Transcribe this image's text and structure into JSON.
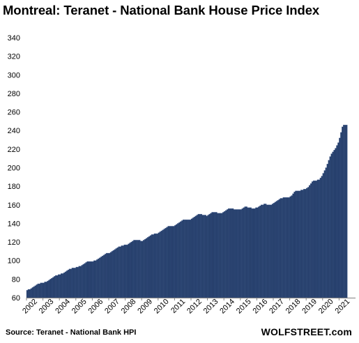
{
  "chart_data": {
    "type": "bar",
    "title": "Montreal: Teranet - National Bank House Price Index",
    "source": "Source: Teranet - National Bank HPI",
    "brand": "WOLFSTREET.com",
    "xlabel": "",
    "ylabel": "",
    "ylim": [
      60,
      340
    ],
    "yticks": [
      60,
      80,
      100,
      120,
      140,
      160,
      180,
      200,
      220,
      240,
      260,
      280,
      300,
      320,
      340
    ],
    "grid": false,
    "legend": "none",
    "bar_color": "#1f3864",
    "categories": [
      "2002",
      "2003",
      "2004",
      "2005",
      "2006",
      "2007",
      "2008",
      "2009",
      "2010",
      "2011",
      "2012",
      "2013",
      "2014",
      "2015",
      "2016",
      "2017",
      "2018",
      "2019",
      "2020",
      "2021"
    ],
    "monthly_values_by_year": [
      [
        68,
        69,
        69,
        70,
        71,
        72,
        73,
        74,
        75,
        75,
        76,
        76
      ],
      [
        76,
        77,
        77,
        78,
        79,
        80,
        81,
        82,
        83,
        84,
        84,
        85
      ],
      [
        85,
        86,
        86,
        87,
        88,
        89,
        90,
        91,
        91,
        92,
        92,
        92
      ],
      [
        93,
        93,
        94,
        94,
        95,
        96,
        97,
        98,
        99,
        99,
        99,
        99
      ],
      [
        99,
        100,
        100,
        101,
        102,
        103,
        104,
        105,
        106,
        107,
        108,
        108
      ],
      [
        108,
        109,
        110,
        111,
        112,
        113,
        114,
        115,
        115,
        116,
        116,
        117
      ],
      [
        117,
        117,
        118,
        119,
        120,
        121,
        122,
        122,
        122,
        122,
        122,
        121
      ],
      [
        121,
        122,
        123,
        124,
        125,
        126,
        127,
        128,
        128,
        129,
        129,
        129
      ],
      [
        130,
        131,
        132,
        133,
        134,
        135,
        136,
        137,
        137,
        137,
        137,
        137
      ],
      [
        138,
        139,
        140,
        141,
        142,
        143,
        144,
        144,
        144,
        144,
        144,
        144
      ],
      [
        145,
        146,
        147,
        148,
        149,
        150,
        150,
        150,
        149,
        149,
        149,
        148
      ],
      [
        149,
        150,
        151,
        152,
        152,
        152,
        152,
        151,
        151,
        151,
        151,
        152
      ],
      [
        153,
        154,
        155,
        156,
        156,
        156,
        156,
        155,
        155,
        155,
        155,
        155
      ],
      [
        155,
        156,
        157,
        158,
        158,
        157,
        157,
        157,
        156,
        156,
        156,
        157
      ],
      [
        157,
        158,
        159,
        160,
        160,
        161,
        161,
        160,
        160,
        160,
        160,
        161
      ],
      [
        162,
        163,
        164,
        165,
        166,
        167,
        167,
        168,
        168,
        168,
        168,
        168
      ],
      [
        169,
        170,
        172,
        174,
        175,
        175,
        175,
        175,
        176,
        176,
        177,
        177
      ],
      [
        178,
        179,
        181,
        183,
        185,
        186,
        186,
        186,
        187,
        187,
        189,
        191
      ],
      [
        194,
        197,
        200,
        204,
        208,
        212,
        215,
        217,
        219,
        221,
        224,
        227
      ],
      [
        232,
        238,
        244,
        246,
        246,
        246
      ]
    ]
  }
}
